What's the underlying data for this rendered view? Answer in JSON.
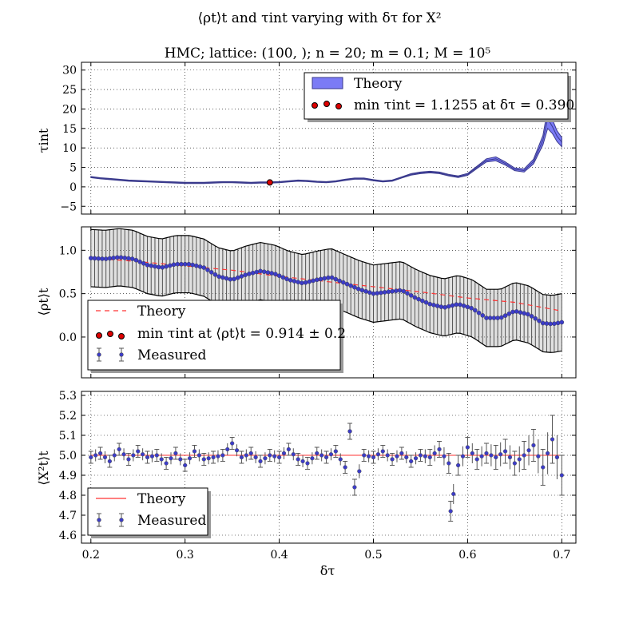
{
  "figure": {
    "suptitle": "⟨ρt⟩t and τint varying with δτ for X²",
    "subtitle": "HMC; lattice: (100, ); n = 20; m = 0.1; M = 10⁵",
    "xlabel": "δτ"
  },
  "colors": {
    "theory_fill": "#7b7bf5",
    "theory_edge": "#3a3a8c",
    "measured_point": "#3c3cc8",
    "errorbar": "#555555",
    "theory_line": "#ff3333",
    "min_marker": "#dd0000"
  },
  "chart_data": [
    {
      "type": "line",
      "panel": "tau_int",
      "title": "HMC; lattice: (100, ); n = 20; m = 0.1; M = 10⁵",
      "ylabel": "τint",
      "xlim": [
        0.19,
        0.715
      ],
      "ylim": [
        -7,
        32
      ],
      "xticks": [
        0.2,
        0.3,
        0.4,
        0.5,
        0.6,
        0.7
      ],
      "xtick_labels": [
        "0.2",
        "0.3",
        "0.4",
        "0.5",
        "0.6",
        "0.7"
      ],
      "yticks": [
        -5,
        0,
        5,
        10,
        15,
        20,
        25,
        30
      ],
      "ytick_labels": [
        "−5",
        "0",
        "5",
        "10",
        "15",
        "20",
        "25",
        "30"
      ],
      "series": [
        {
          "name": "Theory",
          "x": [
            0.2,
            0.21,
            0.22,
            0.23,
            0.24,
            0.25,
            0.26,
            0.27,
            0.28,
            0.29,
            0.3,
            0.31,
            0.32,
            0.33,
            0.34,
            0.35,
            0.36,
            0.37,
            0.38,
            0.39,
            0.4,
            0.41,
            0.42,
            0.43,
            0.44,
            0.45,
            0.46,
            0.47,
            0.48,
            0.49,
            0.5,
            0.51,
            0.52,
            0.53,
            0.54,
            0.55,
            0.56,
            0.57,
            0.58,
            0.59,
            0.6,
            0.61,
            0.62,
            0.63,
            0.64,
            0.65,
            0.66,
            0.67,
            0.68,
            0.685,
            0.69,
            0.695,
            0.7
          ],
          "y": [
            2.5,
            2.2,
            2.0,
            1.8,
            1.6,
            1.5,
            1.4,
            1.3,
            1.2,
            1.1,
            1.0,
            1.0,
            1.0,
            1.1,
            1.2,
            1.2,
            1.1,
            1.0,
            1.1,
            1.1,
            1.2,
            1.4,
            1.6,
            1.5,
            1.3,
            1.2,
            1.4,
            1.8,
            2.1,
            2.1,
            1.7,
            1.4,
            1.6,
            2.4,
            3.2,
            3.6,
            3.8,
            3.6,
            3.0,
            2.6,
            3.2,
            5.0,
            6.8,
            7.2,
            6.0,
            4.5,
            4.2,
            6.5,
            12.0,
            17.5,
            15.5,
            13.0,
            11.5
          ],
          "band_halfwidth": [
            0.15,
            0.15,
            0.15,
            0.15,
            0.15,
            0.15,
            0.15,
            0.15,
            0.15,
            0.15,
            0.15,
            0.15,
            0.15,
            0.15,
            0.15,
            0.15,
            0.15,
            0.15,
            0.15,
            0.15,
            0.15,
            0.15,
            0.15,
            0.15,
            0.15,
            0.15,
            0.15,
            0.15,
            0.15,
            0.15,
            0.15,
            0.15,
            0.15,
            0.15,
            0.2,
            0.2,
            0.2,
            0.2,
            0.2,
            0.2,
            0.25,
            0.3,
            0.4,
            0.5,
            0.4,
            0.35,
            0.4,
            0.6,
            1.2,
            2.5,
            1.8,
            1.4,
            1.2
          ]
        }
      ],
      "min_point": {
        "x": 0.39,
        "y": 1.1255
      },
      "legend": {
        "position": "top-right",
        "entries": [
          "Theory",
          "min τint = 1.1255 at δτ = 0.390"
        ]
      }
    },
    {
      "type": "line",
      "panel": "rho",
      "ylabel": "⟨ρt⟩t",
      "xlim": [
        0.19,
        0.715
      ],
      "ylim": [
        -0.47,
        1.27
      ],
      "yticks": [
        0.0,
        0.5,
        1.0
      ],
      "ytick_labels": [
        "0.0",
        "0.5",
        "1.0"
      ],
      "series": [
        {
          "name": "Measured",
          "x": [
            0.2,
            0.215,
            0.23,
            0.245,
            0.26,
            0.275,
            0.29,
            0.305,
            0.32,
            0.335,
            0.35,
            0.365,
            0.38,
            0.395,
            0.41,
            0.425,
            0.44,
            0.455,
            0.47,
            0.485,
            0.5,
            0.515,
            0.53,
            0.545,
            0.56,
            0.575,
            0.59,
            0.605,
            0.62,
            0.635,
            0.65,
            0.665,
            0.68,
            0.69,
            0.7
          ],
          "y": [
            0.91,
            0.9,
            0.92,
            0.9,
            0.83,
            0.8,
            0.84,
            0.84,
            0.8,
            0.7,
            0.66,
            0.72,
            0.76,
            0.73,
            0.66,
            0.62,
            0.66,
            0.69,
            0.62,
            0.55,
            0.5,
            0.52,
            0.54,
            0.45,
            0.38,
            0.34,
            0.38,
            0.33,
            0.22,
            0.22,
            0.3,
            0.26,
            0.16,
            0.15,
            0.17
          ],
          "yerr": 0.08,
          "band_halfwidth": 0.33
        },
        {
          "name": "Theory",
          "x": [
            0.2,
            0.25,
            0.3,
            0.35,
            0.4,
            0.45,
            0.5,
            0.55,
            0.6,
            0.65,
            0.7
          ],
          "y": [
            0.91,
            0.87,
            0.82,
            0.77,
            0.7,
            0.64,
            0.58,
            0.52,
            0.45,
            0.4,
            0.3
          ]
        }
      ],
      "min_point": {
        "x": 0.39,
        "y": 0.914
      },
      "legend": {
        "position": "bottom-left",
        "entries": [
          "Theory",
          "min τint at ⟨ρt⟩t = 0.914 ± 0.2",
          "Measured"
        ]
      }
    },
    {
      "type": "scatter",
      "panel": "x2",
      "ylabel": "⟨X²t⟩t",
      "xlim": [
        0.19,
        0.715
      ],
      "ylim": [
        4.56,
        5.32
      ],
      "yticks": [
        4.6,
        4.7,
        4.8,
        4.9,
        5.0,
        5.1,
        5.2,
        5.3
      ],
      "ytick_labels": [
        "4.6",
        "4.7",
        "4.8",
        "4.9",
        "5.0",
        "5.1",
        "5.2",
        "5.3"
      ],
      "series": [
        {
          "name": "Measured",
          "x": [
            0.2,
            0.21,
            0.22,
            0.23,
            0.24,
            0.25,
            0.26,
            0.27,
            0.28,
            0.29,
            0.3,
            0.31,
            0.32,
            0.33,
            0.34,
            0.35,
            0.36,
            0.37,
            0.38,
            0.39,
            0.4,
            0.41,
            0.42,
            0.43,
            0.44,
            0.45,
            0.46,
            0.47,
            0.475,
            0.48,
            0.49,
            0.5,
            0.51,
            0.52,
            0.53,
            0.54,
            0.55,
            0.56,
            0.57,
            0.58,
            0.582,
            0.59,
            0.6,
            0.61,
            0.62,
            0.63,
            0.64,
            0.65,
            0.66,
            0.67,
            0.68,
            0.69,
            0.7
          ],
          "y": [
            4.99,
            5.01,
            4.97,
            5.03,
            4.98,
            5.02,
            4.99,
            5.0,
            4.96,
            5.01,
            4.95,
            5.02,
            4.98,
            4.99,
            5.0,
            5.06,
            4.99,
            5.01,
            4.97,
            5.0,
            4.99,
            5.03,
            4.98,
            4.96,
            5.01,
            4.99,
            5.02,
            4.94,
            5.12,
            4.84,
            5.0,
            4.99,
            5.02,
            4.98,
            5.01,
            4.97,
            5.0,
            4.99,
            5.03,
            4.96,
            4.72,
            4.95,
            5.04,
            4.98,
            5.01,
            4.99,
            5.02,
            4.96,
            5.0,
            5.05,
            4.94,
            5.08,
            4.9
          ],
          "yerr": [
            0.03,
            0.03,
            0.03,
            0.03,
            0.03,
            0.03,
            0.03,
            0.03,
            0.03,
            0.03,
            0.03,
            0.03,
            0.03,
            0.03,
            0.03,
            0.03,
            0.03,
            0.03,
            0.03,
            0.03,
            0.03,
            0.03,
            0.03,
            0.03,
            0.03,
            0.03,
            0.03,
            0.03,
            0.04,
            0.04,
            0.03,
            0.03,
            0.03,
            0.03,
            0.03,
            0.03,
            0.03,
            0.04,
            0.04,
            0.05,
            0.05,
            0.05,
            0.05,
            0.05,
            0.05,
            0.06,
            0.06,
            0.06,
            0.07,
            0.08,
            0.09,
            0.12,
            0.1
          ]
        },
        {
          "name": "Theory",
          "x": [
            0.2,
            0.7
          ],
          "y": [
            5.0,
            5.0
          ]
        }
      ],
      "legend": {
        "position": "bottom-left",
        "entries": [
          "Theory",
          "Measured"
        ]
      }
    }
  ]
}
